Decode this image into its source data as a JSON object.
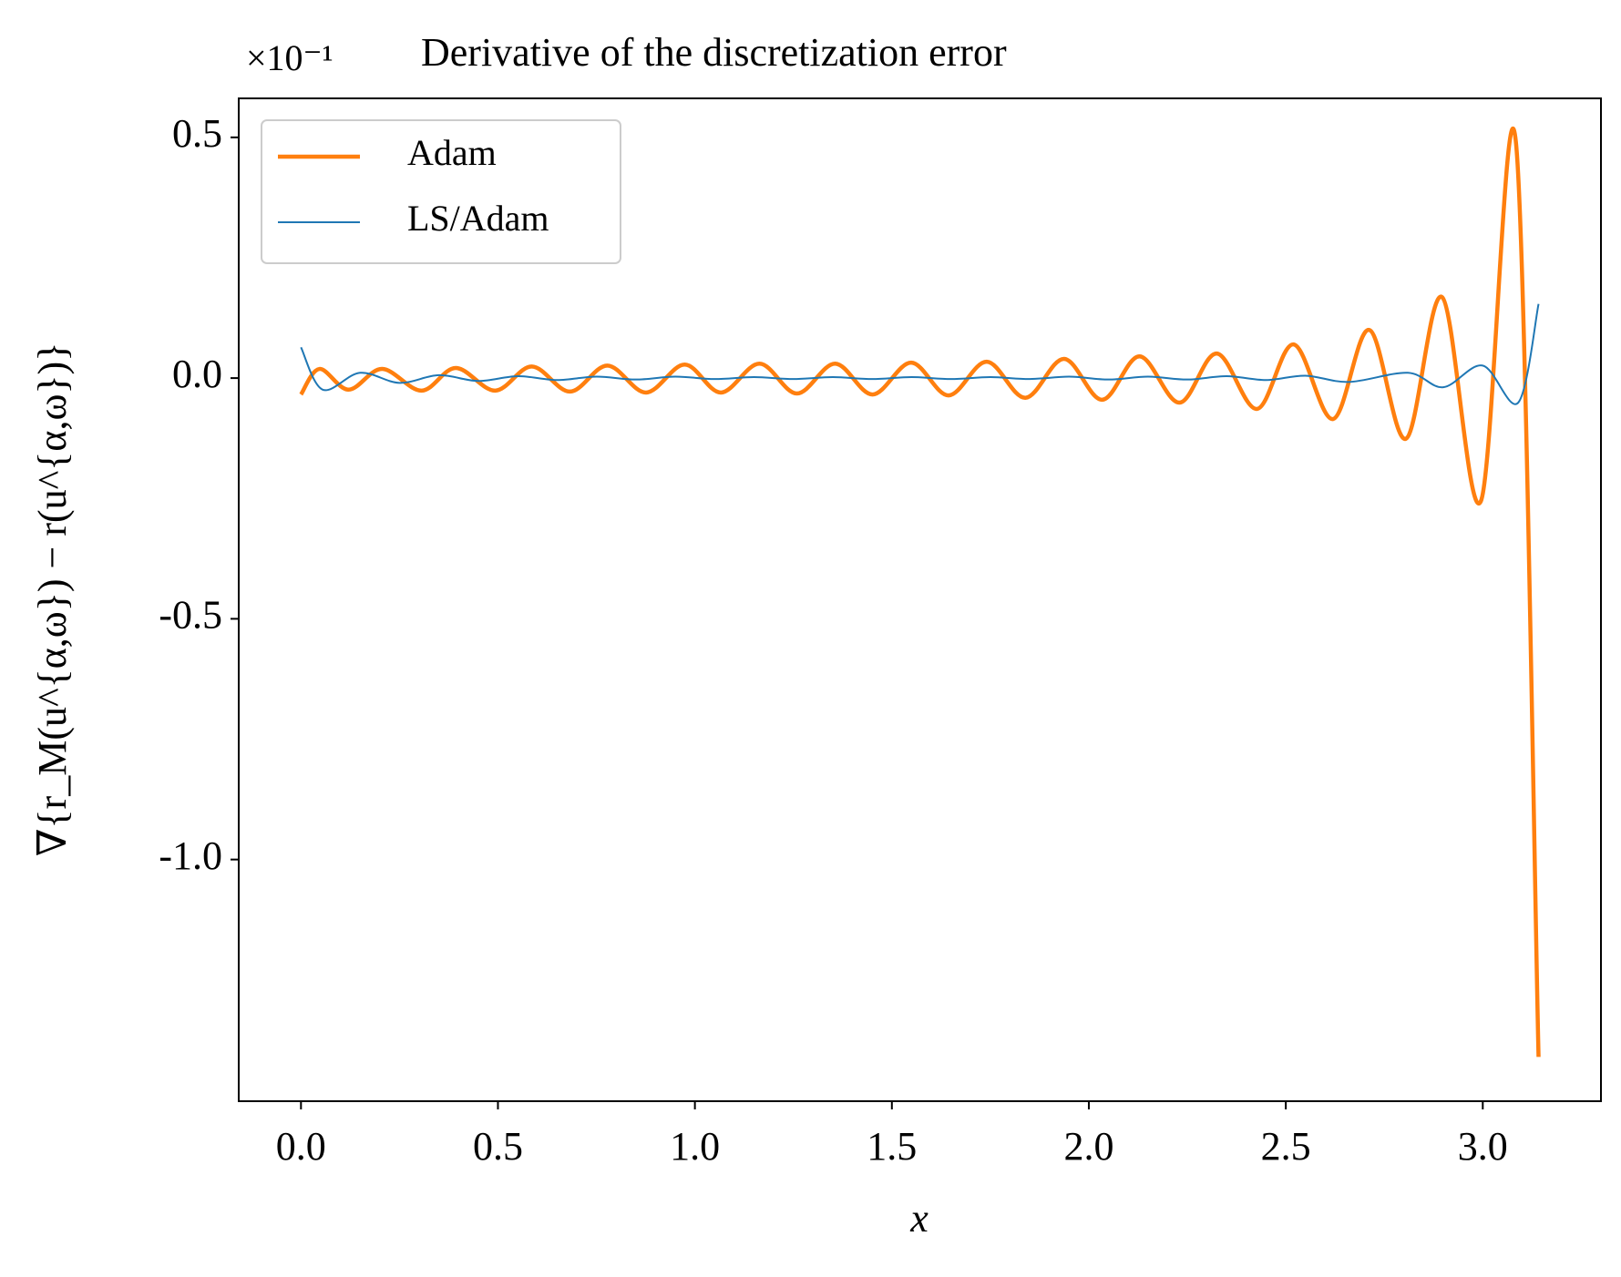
{
  "chart_data": {
    "type": "line",
    "title": "Derivative of the discretization error",
    "y_offset_label": "×10⁻¹",
    "x_label": "x",
    "y_label": "∇{r_M(u^{α,ω}) − r(u^{α,ω})}",
    "xlim": [
      -0.158,
      3.3
    ],
    "ylim": [
      -1.502,
      0.581
    ],
    "xticks": [
      {
        "value": 0,
        "label": "0.0"
      },
      {
        "value": 0.5,
        "label": "0.5"
      },
      {
        "value": 1,
        "label": "1.0"
      },
      {
        "value": 1.5,
        "label": "1.5"
      },
      {
        "value": 2,
        "label": "2.0"
      },
      {
        "value": 2.5,
        "label": "2.5"
      },
      {
        "value": 3,
        "label": "3.0"
      }
    ],
    "yticks": [
      {
        "value": -1,
        "label": "-1.0"
      },
      {
        "value": -0.5,
        "label": "-0.5"
      },
      {
        "value": 0,
        "label": "0.0"
      },
      {
        "value": 0.5,
        "label": "0.5"
      }
    ],
    "grid": false,
    "legend": "upper left",
    "series": [
      {
        "name": "Adam",
        "color": "#ff7f0e",
        "width": 4.5,
        "x": [
          0,
          0.047,
          0.121,
          0.206,
          0.306,
          0.393,
          0.493,
          0.586,
          0.683,
          0.778,
          0.876,
          0.974,
          1.066,
          1.164,
          1.259,
          1.356,
          1.451,
          1.549,
          1.644,
          1.741,
          1.839,
          1.937,
          2.034,
          2.129,
          2.23,
          2.325,
          2.427,
          2.52,
          2.62,
          2.712,
          2.805,
          2.897,
          2.995,
          3.084,
          3.1416
        ],
        "values": [
          -0.034,
          0.019,
          -0.024,
          0.019,
          -0.026,
          0.021,
          -0.026,
          0.024,
          -0.028,
          0.026,
          -0.03,
          0.028,
          -0.03,
          0.03,
          -0.032,
          0.03,
          -0.034,
          0.032,
          -0.036,
          0.034,
          -0.041,
          0.04,
          -0.045,
          0.045,
          -0.051,
          0.051,
          -0.064,
          0.07,
          -0.085,
          0.1,
          -0.126,
          0.168,
          -0.256,
          0.491,
          -1.41
        ]
      },
      {
        "name": "LS/Adam",
        "color": "#1f77b4",
        "width": 2,
        "x": [
          0,
          0.055,
          0.15,
          0.25,
          0.35,
          0.45,
          0.55,
          0.65,
          0.75,
          0.85,
          0.95,
          1.05,
          1.15,
          1.25,
          1.35,
          1.45,
          1.55,
          1.65,
          1.75,
          1.85,
          1.95,
          2.05,
          2.15,
          2.25,
          2.35,
          2.45,
          2.55,
          2.66,
          2.81,
          2.9,
          3.0,
          3.09,
          3.1416
        ],
        "values": [
          0.064,
          -0.024,
          0.011,
          -0.01,
          0.006,
          -0.006,
          0.004,
          -0.004,
          0.003,
          -0.003,
          0.003,
          -0.002,
          0.002,
          -0.002,
          0.002,
          -0.002,
          0.002,
          -0.002,
          0.002,
          -0.002,
          0.003,
          -0.003,
          0.003,
          -0.003,
          0.004,
          -0.004,
          0.005,
          -0.008,
          0.011,
          -0.019,
          0.026,
          -0.051,
          0.154
        ]
      }
    ]
  }
}
